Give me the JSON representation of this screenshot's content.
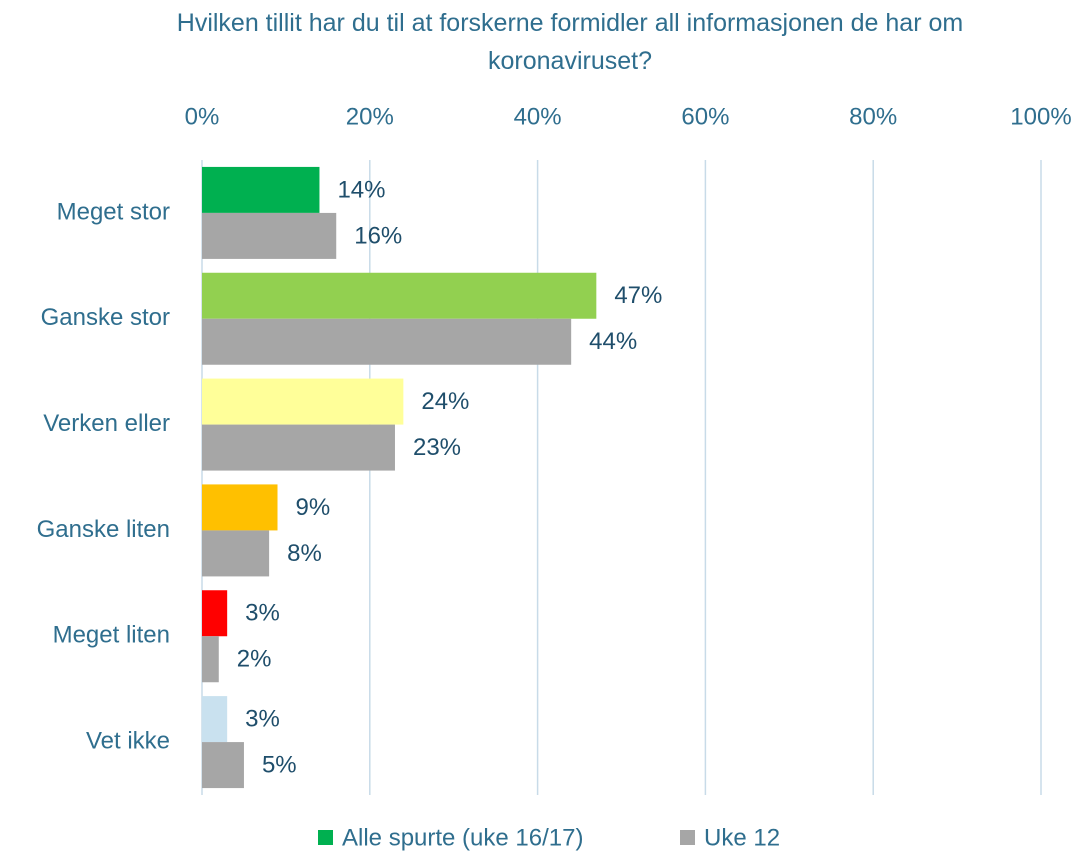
{
  "chart_data": {
    "type": "hbar",
    "title": "Hvilken tillit har du til at forskerne formidler all informasjonen de har om koronaviruset?",
    "categories": [
      "Meget stor",
      "Ganske stor",
      "Verken eller",
      "Ganske liten",
      "Meget liten",
      "Vet ikke"
    ],
    "series": [
      {
        "name": "Alle spurte (uke 16/17)",
        "color": "#00b050",
        "colors": [
          "#00b050",
          "#92d050",
          "#ffff99",
          "#ffc000",
          "#ff0000",
          "#c9e1ef"
        ],
        "values": [
          14,
          47,
          24,
          9,
          3,
          3
        ],
        "value_labels": [
          "14%",
          "47%",
          "24%",
          "9%",
          "3%",
          "3%"
        ]
      },
      {
        "name": "Uke 12",
        "color": "#a6a6a6",
        "values": [
          16,
          44,
          23,
          8,
          2,
          5
        ],
        "value_labels": [
          "16%",
          "44%",
          "23%",
          "8%",
          "2%",
          "5%"
        ]
      }
    ],
    "xlim": [
      0,
      100
    ],
    "xticks": [
      {
        "value": 0,
        "label": "0%"
      },
      {
        "value": 20,
        "label": "20%"
      },
      {
        "value": 40,
        "label": "40%"
      },
      {
        "value": 60,
        "label": "60%"
      },
      {
        "value": 80,
        "label": "80%"
      },
      {
        "value": 100,
        "label": "100%"
      }
    ],
    "grid": true,
    "legend": "bottom"
  }
}
